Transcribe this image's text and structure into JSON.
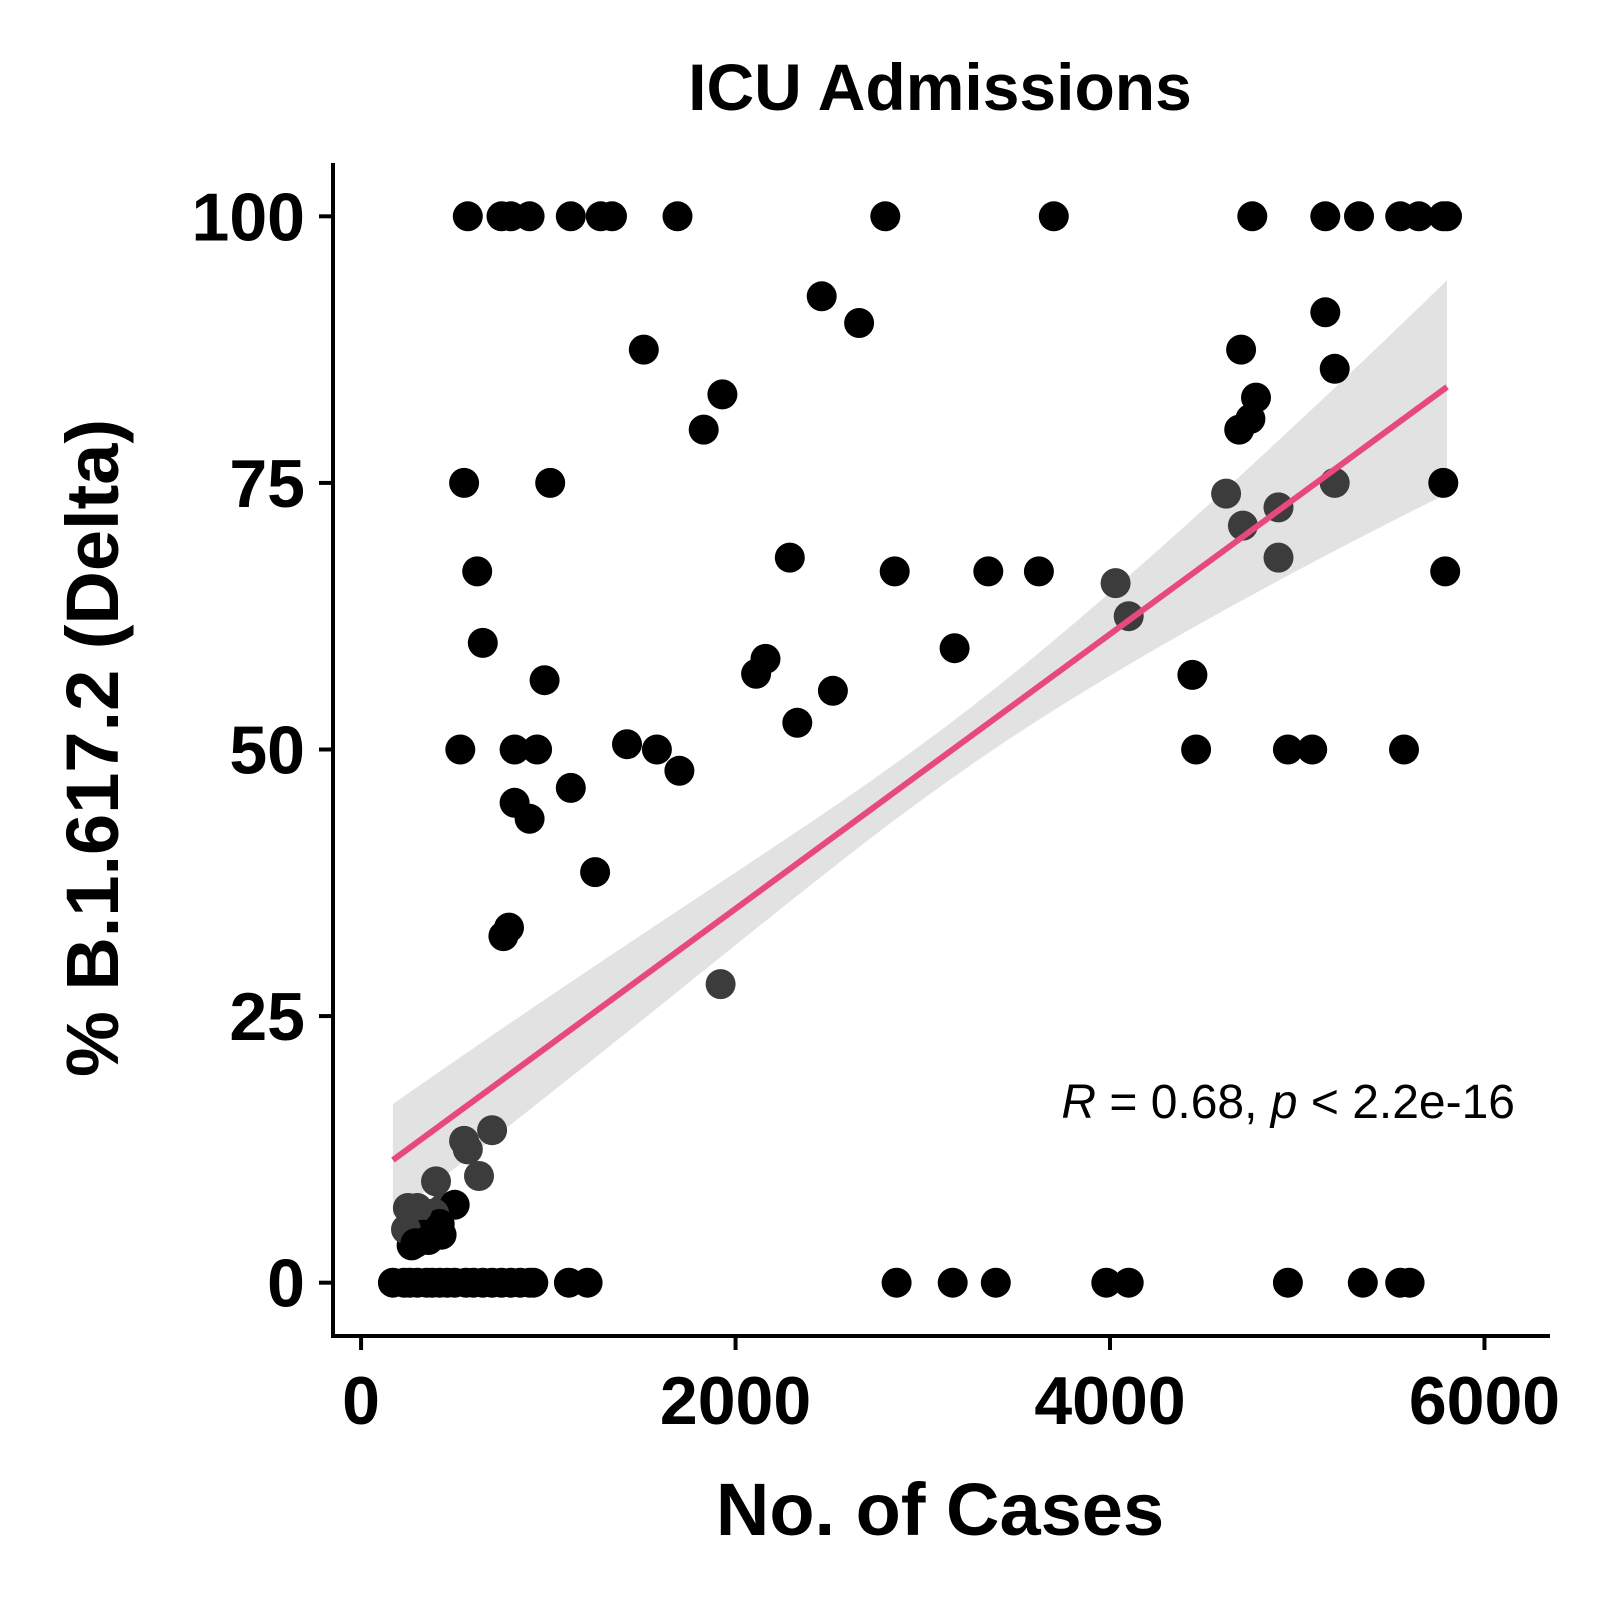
{
  "chart_data": {
    "type": "scatter",
    "title": "ICU Admissions",
    "xlabel": "No. of Cases",
    "ylabel": "% B.1.617.2 (Delta)",
    "xlim": [
      -150,
      6350
    ],
    "ylim": [
      -5,
      105
    ],
    "xticks": [
      0,
      2000,
      4000,
      6000
    ],
    "yticks": [
      0,
      25,
      50,
      75,
      100
    ],
    "grid": false,
    "legend": "none",
    "colors": {
      "points": "#000000",
      "fit_line": "#e8497c",
      "confidence_band": "#e0e0e0"
    },
    "annotation": {
      "R_symbol": "R",
      "R_text": " = 0.68, ",
      "p_symbol": "p",
      "p_text": " < 2.2e-16"
    },
    "fit": {
      "x": [
        170,
        5800
      ],
      "y": [
        11.5,
        84.0
      ],
      "lower": [
        6.5,
        74.0
      ],
      "upper": [
        17.0,
        94.0
      ]
    },
    "points": {
      "x": [
        570,
        750,
        800,
        900,
        1120,
        1280,
        1340,
        1690,
        2800,
        3700,
        4760,
        5150,
        5330,
        5550,
        5650,
        5780,
        5800,
        2460,
        2660,
        1510,
        1830,
        1930,
        5150,
        4700,
        5200,
        4690,
        4750,
        4780,
        550,
        1010,
        4620,
        5200,
        5780,
        4900,
        4710,
        620,
        2290,
        2850,
        3350,
        3620,
        4900,
        5790,
        4030,
        4100,
        650,
        3170,
        2110,
        2160,
        4440,
        2520,
        980,
        2330,
        530,
        820,
        940,
        1420,
        1580,
        1700,
        4460,
        4950,
        5080,
        5570,
        820,
        1120,
        900,
        1250,
        790,
        760,
        1920,
        700,
        550,
        570,
        630,
        400,
        440,
        500,
        390,
        420,
        300,
        330,
        250,
        270,
        240,
        290,
        360,
        430,
        170,
        230,
        260,
        300,
        350,
        380,
        420,
        460,
        500,
        560,
        600,
        650,
        700,
        750,
        800,
        850,
        900,
        920,
        1110,
        1210,
        2860,
        3160,
        3390,
        3980,
        4100,
        4950,
        5350,
        5550,
        5600
      ],
      "y": [
        100,
        100,
        100,
        100,
        100,
        100,
        100,
        100,
        100,
        100,
        100,
        100,
        100,
        100,
        100,
        100,
        100,
        92.5,
        90,
        87.5,
        80,
        83.3,
        91,
        87.5,
        85.7,
        80,
        81,
        83,
        75,
        75,
        74,
        75,
        75,
        72.7,
        71,
        66.7,
        68,
        66.7,
        66.7,
        66.7,
        68,
        66.7,
        65.6,
        62.5,
        60,
        59.5,
        57.1,
        58.5,
        57,
        55.5,
        56.5,
        52.5,
        50,
        50,
        50,
        50.5,
        50,
        48,
        50,
        50,
        50,
        50,
        45,
        46.4,
        43.5,
        38.5,
        33.3,
        32.5,
        28,
        14.3,
        13.3,
        12.5,
        10,
        9.5,
        7,
        7.3,
        6.5,
        5.5,
        7,
        4.5,
        7,
        3.5,
        5,
        3.7,
        4,
        4.5,
        0,
        0,
        0,
        0,
        0,
        0,
        0,
        0,
        0,
        0,
        0,
        0,
        0,
        0,
        0,
        0,
        0,
        0,
        0,
        0,
        0,
        0,
        0,
        0,
        0,
        0,
        0,
        0,
        0
      ]
    }
  }
}
